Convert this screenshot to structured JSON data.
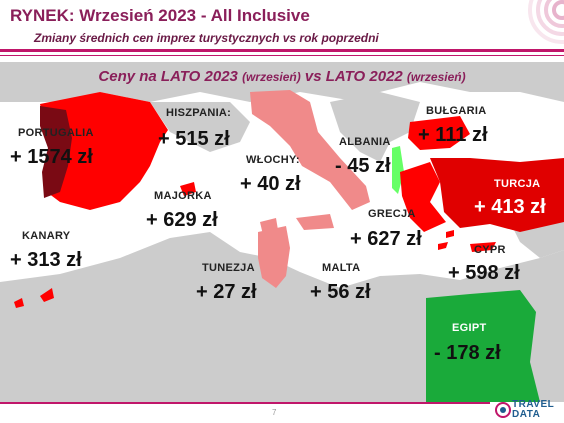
{
  "header": {
    "title": "RYNEK: Wrzesień 2023 - All Inclusive",
    "subtitle": "Zmiany średnich cen imprez turystycznych vs rok poprzedni"
  },
  "map": {
    "title_main1": "Ceny na LATO 2023 ",
    "title_small1": "(wrzesień)",
    "title_main2": " vs  LATO 2022 ",
    "title_small2": "(wrzesień)",
    "countries": [
      {
        "label": "HISZPANIA:",
        "value": "+ 515 zł",
        "color": "#ff0000"
      },
      {
        "label": "PORTUGALIA",
        "value": "+ 1574 zł",
        "color": "#7a0a14"
      },
      {
        "label": "MAJORKA",
        "value": "+ 629 zł",
        "color": "#ff0000"
      },
      {
        "label": "KANARY",
        "value": "+ 313 zł",
        "color": "#ff0000"
      },
      {
        "label": "WŁOCHY:",
        "value": "+ 40 zł",
        "color": "#f08a8a"
      },
      {
        "label": "ALBANIA",
        "value": "- 45 zł",
        "color": "#66ff66"
      },
      {
        "label": "BUŁGARIA",
        "value": "+ 111 zł",
        "color": "#ff0000"
      },
      {
        "label": "TURCJA",
        "value": "+ 413 zł",
        "color": "#e00000"
      },
      {
        "label": "GRECJA",
        "value": "+ 627 zł",
        "color": "#ff0000"
      },
      {
        "label": "CYPR",
        "value": "+ 598 zł",
        "color": "#ff0000"
      },
      {
        "label": "TUNEZJA",
        "value": "+ 27 zł",
        "color": "#f08a8a"
      },
      {
        "label": "MALTA",
        "value": "+ 56 zł",
        "color": "#f08a8a"
      },
      {
        "label": "EGIPT",
        "value": "- 178 zł",
        "color": "#1aaa3a"
      }
    ]
  },
  "footer": {
    "page_number": "7",
    "logo_line1": "TRAVEL",
    "logo_line2": "DATA"
  }
}
